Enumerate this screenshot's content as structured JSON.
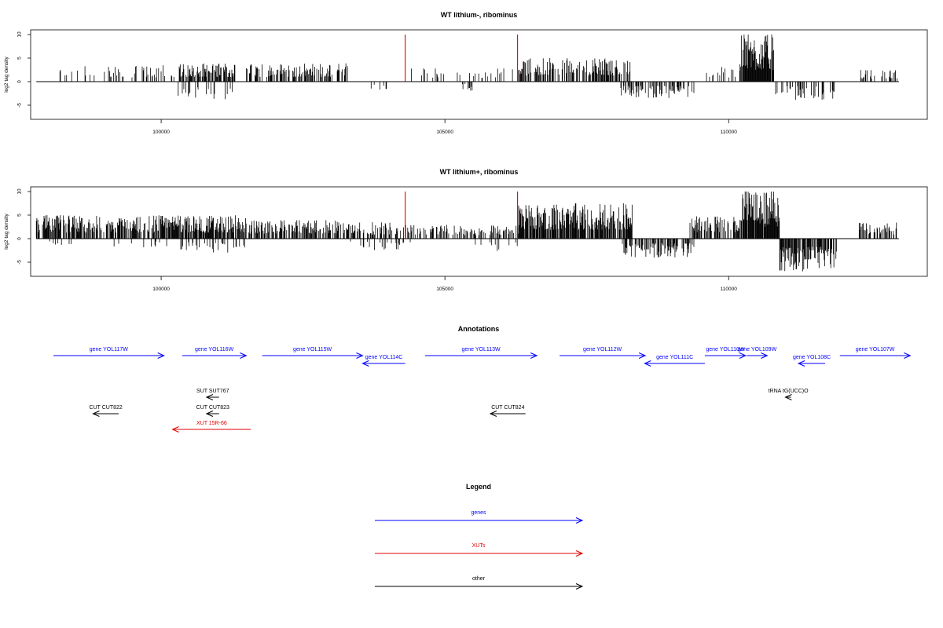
{
  "chart_data": [
    {
      "type": "bar",
      "title": "WT lithium-, ribominus",
      "ylabel": "log2 tag density",
      "xlim": [
        97700,
        113500
      ],
      "ylim": [
        -8,
        11
      ],
      "x_ticks": [
        100000,
        105000,
        110000
      ],
      "y_ticks": [
        -5,
        0,
        5,
        10
      ],
      "series_style": "thin vertical bars (tag density per position)",
      "bar_color": "#000000",
      "highlight_color": "#e00000",
      "highlight_x": [
        104300,
        106280
      ],
      "highlight_height": 10,
      "coverage": [
        {
          "start": 97800,
          "end": 98000,
          "sign": 1,
          "max": 1.5,
          "density": 0.05
        },
        {
          "start": 98000,
          "end": 99000,
          "sign": 1,
          "max": 3.5,
          "density": 0.12
        },
        {
          "start": 99000,
          "end": 100300,
          "sign": 1,
          "max": 3.5,
          "density": 0.3
        },
        {
          "start": 100300,
          "end": 101300,
          "sign": 1,
          "max": 4,
          "density": 0.6
        },
        {
          "start": 100300,
          "end": 101300,
          "sign": -1,
          "max": 3.8,
          "density": 0.2
        },
        {
          "start": 101500,
          "end": 103300,
          "sign": 1,
          "max": 4,
          "density": 0.45
        },
        {
          "start": 103700,
          "end": 104000,
          "sign": -1,
          "max": 2.5,
          "density": 0.15
        },
        {
          "start": 104300,
          "end": 106300,
          "sign": 1,
          "max": 3,
          "density": 0.12
        },
        {
          "start": 105300,
          "end": 105500,
          "sign": -1,
          "max": 2,
          "density": 0.1
        },
        {
          "start": 106300,
          "end": 108300,
          "sign": 1,
          "max": 5,
          "density": 0.55
        },
        {
          "start": 108100,
          "end": 109400,
          "sign": -1,
          "max": 3.5,
          "density": 0.45
        },
        {
          "start": 109600,
          "end": 110200,
          "sign": 1,
          "max": 3.5,
          "density": 0.3
        },
        {
          "start": 110200,
          "end": 110800,
          "sign": 1,
          "max": 10,
          "density": 0.98
        },
        {
          "start": 110800,
          "end": 111900,
          "sign": -1,
          "max": 4,
          "density": 0.25
        },
        {
          "start": 112300,
          "end": 113000,
          "sign": 1,
          "max": 2.5,
          "density": 0.3
        }
      ]
    },
    {
      "type": "bar",
      "title": "WT lithium+, ribominus",
      "ylabel": "log2 tag density",
      "xlim": [
        97700,
        113500
      ],
      "ylim": [
        -8,
        11
      ],
      "x_ticks": [
        100000,
        105000,
        110000
      ],
      "y_ticks": [
        -5,
        0,
        5,
        10
      ],
      "series_style": "thin vertical bars (tag density per position)",
      "bar_color": "#000000",
      "highlight_color": "#e00000",
      "highlight_x": [
        104300,
        106280
      ],
      "highlight_height": 10,
      "coverage": [
        {
          "start": 97800,
          "end": 100300,
          "sign": 1,
          "max": 5,
          "density": 0.7
        },
        {
          "start": 98000,
          "end": 100300,
          "sign": -1,
          "max": 2,
          "density": 0.05
        },
        {
          "start": 100300,
          "end": 101500,
          "sign": 1,
          "max": 5,
          "density": 0.75
        },
        {
          "start": 100300,
          "end": 101500,
          "sign": -1,
          "max": 3,
          "density": 0.2
        },
        {
          "start": 101500,
          "end": 103300,
          "sign": 1,
          "max": 4,
          "density": 0.55
        },
        {
          "start": 103300,
          "end": 104400,
          "sign": 1,
          "max": 3.5,
          "density": 0.4
        },
        {
          "start": 103300,
          "end": 104400,
          "sign": -1,
          "max": 2.5,
          "density": 0.15
        },
        {
          "start": 104400,
          "end": 106300,
          "sign": 1,
          "max": 3,
          "density": 0.35
        },
        {
          "start": 105500,
          "end": 106300,
          "sign": -1,
          "max": 3,
          "density": 0.1
        },
        {
          "start": 106300,
          "end": 108300,
          "sign": 1,
          "max": 7.5,
          "density": 0.85
        },
        {
          "start": 108100,
          "end": 109400,
          "sign": -1,
          "max": 4,
          "density": 0.55
        },
        {
          "start": 109300,
          "end": 110200,
          "sign": 1,
          "max": 5,
          "density": 0.6
        },
        {
          "start": 110200,
          "end": 110900,
          "sign": 1,
          "max": 10,
          "density": 0.98
        },
        {
          "start": 110900,
          "end": 111900,
          "sign": -1,
          "max": 7,
          "density": 0.75
        },
        {
          "start": 112300,
          "end": 113000,
          "sign": 1,
          "max": 3.5,
          "density": 0.55
        }
      ]
    },
    {
      "type": "table",
      "title": "Annotations",
      "xlim": [
        97700,
        113500
      ],
      "features": [
        {
          "label": "gene YOL117W",
          "kind": "gene",
          "start": 98100,
          "end": 100050,
          "strand": "+",
          "row": 0
        },
        {
          "label": "gene YOL116W",
          "kind": "gene",
          "start": 100370,
          "end": 101500,
          "strand": "+",
          "row": 0
        },
        {
          "label": "gene YOL115W",
          "kind": "gene",
          "start": 101780,
          "end": 103550,
          "strand": "+",
          "row": 0
        },
        {
          "label": "gene YOL114C",
          "kind": "gene",
          "start": 103550,
          "end": 104300,
          "strand": "-",
          "row": 1
        },
        {
          "label": "gene YOL113W",
          "kind": "gene",
          "start": 104650,
          "end": 106620,
          "strand": "+",
          "row": 0
        },
        {
          "label": "gene YOL112W",
          "kind": "gene",
          "start": 107020,
          "end": 108530,
          "strand": "+",
          "row": 0
        },
        {
          "label": "gene YOL111C",
          "kind": "gene",
          "start": 108520,
          "end": 109580,
          "strand": "-",
          "row": 1
        },
        {
          "label": "gene YOL110W",
          "kind": "gene",
          "start": 109580,
          "end": 110300,
          "strand": "+",
          "row": 0
        },
        {
          "label": "gene YOL109W",
          "kind": "gene",
          "start": 110320,
          "end": 110680,
          "strand": "+",
          "row": 0
        },
        {
          "label": "gene YOL108C",
          "kind": "gene",
          "start": 111230,
          "end": 111700,
          "strand": "-",
          "row": 1
        },
        {
          "label": "gene YOL107W",
          "kind": "gene",
          "start": 111960,
          "end": 113200,
          "strand": "+",
          "row": 0
        },
        {
          "label": "SUT SUT767",
          "kind": "other",
          "start": 100800,
          "end": 101020,
          "strand": "-",
          "row": 2
        },
        {
          "label": "tRNA tG(UCC)O",
          "kind": "other",
          "start": 111000,
          "end": 111100,
          "strand": "-",
          "row": 2
        },
        {
          "label": "CUT CUT822",
          "kind": "other",
          "start": 98800,
          "end": 99250,
          "strand": "-",
          "row": 3
        },
        {
          "label": "CUT CUT823",
          "kind": "other",
          "start": 100800,
          "end": 101020,
          "strand": "-",
          "row": 3
        },
        {
          "label": "CUT CUT824",
          "kind": "other",
          "start": 105800,
          "end": 106420,
          "strand": "-",
          "row": 3
        },
        {
          "label": "XUT 15R-66",
          "kind": "xut",
          "start": 100200,
          "end": 101580,
          "strand": "-",
          "row": 4
        }
      ],
      "colors": {
        "gene": "#0000ff",
        "xut": "#e00000",
        "other": "#000000"
      }
    },
    {
      "type": "table",
      "title": "Legend",
      "entries": [
        {
          "label": "genes",
          "color": "#0000ff"
        },
        {
          "label": "XUTs",
          "color": "#e00000"
        },
        {
          "label": "other",
          "color": "#000000"
        }
      ]
    }
  ]
}
